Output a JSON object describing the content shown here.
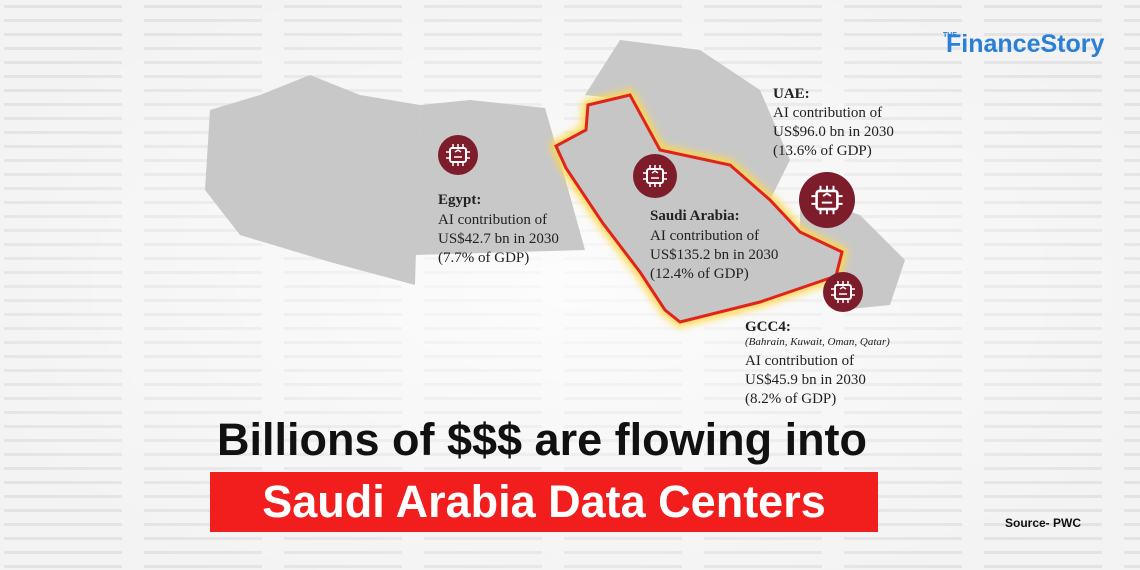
{
  "brand": {
    "prefix": "THE",
    "name": "FinanceStory"
  },
  "regions": [
    {
      "name": "Egypt:",
      "lines": [
        "AI contribution of",
        "US$42.7 bn in 2030",
        "(7.7% of GDP)"
      ]
    },
    {
      "name": "Saudi Arabia:",
      "lines": [
        "AI contribution of",
        "US$135.2 bn in 2030",
        "(12.4% of GDP)"
      ]
    },
    {
      "name": "UAE:",
      "lines": [
        "AI contribution of",
        "US$96.0 bn in 2030",
        "(13.6% of GDP)"
      ]
    },
    {
      "name": "GCC4:",
      "note": "(Bahrain, Kuwait, Oman, Qatar)",
      "lines": [
        "AI contribution of",
        "US$45.9 bn in 2030",
        "(8.2% of GDP)"
      ]
    }
  ],
  "headline": {
    "line1": "Billions of $$$ are flowing into",
    "line2": "Saudi Arabia Data Centers"
  },
  "source": "Source- PWC"
}
